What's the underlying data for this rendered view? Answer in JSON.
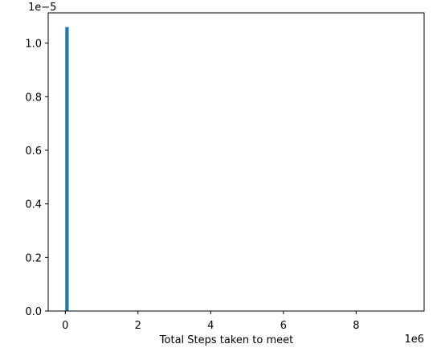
{
  "chart_data": {
    "type": "bar",
    "title": "",
    "xlabel": "Total Steps taken to meet",
    "ylabel": "",
    "x_offset_text": "1e6",
    "y_offset_text": "1e−5",
    "xlim": [
      -0.47,
      9.87
    ],
    "ylim": [
      0,
      1.113
    ],
    "x_ticks": [
      {
        "value": 0,
        "label": "0"
      },
      {
        "value": 2,
        "label": "2"
      },
      {
        "value": 4,
        "label": "4"
      },
      {
        "value": 6,
        "label": "6"
      },
      {
        "value": 8,
        "label": "8"
      }
    ],
    "y_ticks": [
      {
        "value": 0.0,
        "label": "0.0"
      },
      {
        "value": 0.2,
        "label": "0.2"
      },
      {
        "value": 0.4,
        "label": "0.4"
      },
      {
        "value": 0.6,
        "label": "0.6"
      },
      {
        "value": 0.8,
        "label": "0.8"
      },
      {
        "value": 1.0,
        "label": "1.0"
      }
    ],
    "bars": [
      {
        "x_start": 0.0,
        "x_end": 0.094,
        "value": 1.06
      }
    ],
    "bar_color": "#1f77b4",
    "grid": false,
    "legend": "none"
  }
}
